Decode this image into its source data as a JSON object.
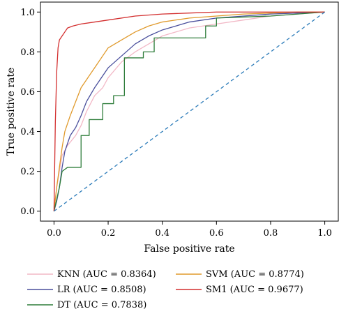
{
  "chart_data": {
    "type": "line",
    "xlabel": "False positive rate",
    "ylabel": "True positive rate",
    "xlim": [
      -0.05,
      1.05
    ],
    "ylim": [
      -0.05,
      1.05
    ],
    "xticks": [
      "0.0",
      "0.2",
      "0.4",
      "0.6",
      "0.8",
      "1.0"
    ],
    "yticks": [
      "0.0",
      "0.2",
      "0.4",
      "0.6",
      "0.8",
      "1.0"
    ],
    "grid": false,
    "legend_position": "bottom",
    "series": [
      {
        "name": "KNN (AUC = 0.8364)",
        "color": "#f2b8c6",
        "x": [
          0,
          0.01,
          0.02,
          0.03,
          0.05,
          0.08,
          0.1,
          0.12,
          0.15,
          0.18,
          0.2,
          0.25,
          0.3,
          0.35,
          0.4,
          0.5,
          0.6,
          0.7,
          0.8,
          0.9,
          1.0
        ],
        "y": [
          0,
          0.12,
          0.2,
          0.28,
          0.33,
          0.38,
          0.43,
          0.5,
          0.58,
          0.62,
          0.67,
          0.75,
          0.8,
          0.84,
          0.88,
          0.92,
          0.94,
          0.96,
          0.98,
          0.99,
          1.0
        ]
      },
      {
        "name": "LR (AUC = 0.8508)",
        "color": "#4a4f9c",
        "x": [
          0,
          0.01,
          0.02,
          0.03,
          0.04,
          0.06,
          0.08,
          0.1,
          0.12,
          0.15,
          0.18,
          0.2,
          0.25,
          0.3,
          0.35,
          0.4,
          0.5,
          0.6,
          0.7,
          0.8,
          0.9,
          1.0
        ],
        "y": [
          0,
          0.05,
          0.12,
          0.22,
          0.3,
          0.38,
          0.42,
          0.48,
          0.55,
          0.62,
          0.68,
          0.72,
          0.78,
          0.84,
          0.88,
          0.91,
          0.95,
          0.97,
          0.98,
          0.99,
          0.995,
          1.0
        ]
      },
      {
        "name": "SVM (AUC = 0.8774)",
        "color": "#e09a2c",
        "x": [
          0,
          0.01,
          0.02,
          0.03,
          0.04,
          0.06,
          0.08,
          0.1,
          0.12,
          0.15,
          0.18,
          0.2,
          0.25,
          0.3,
          0.35,
          0.4,
          0.5,
          0.6,
          0.7,
          0.8,
          0.9,
          1.0
        ],
        "y": [
          0,
          0.12,
          0.22,
          0.32,
          0.4,
          0.48,
          0.55,
          0.62,
          0.66,
          0.72,
          0.78,
          0.82,
          0.86,
          0.9,
          0.93,
          0.95,
          0.97,
          0.98,
          0.99,
          0.995,
          1.0,
          1.0
        ]
      },
      {
        "name": "DT (AUC = 0.7838)",
        "color": "#2e7d3a",
        "x": [
          0,
          0.02,
          0.03,
          0.05,
          0.1,
          0.1,
          0.13,
          0.13,
          0.18,
          0.18,
          0.22,
          0.22,
          0.26,
          0.26,
          0.33,
          0.33,
          0.37,
          0.37,
          0.56,
          0.56,
          0.6,
          0.6,
          0.8,
          1.0
        ],
        "y": [
          0,
          0.12,
          0.2,
          0.22,
          0.22,
          0.38,
          0.38,
          0.46,
          0.46,
          0.54,
          0.54,
          0.58,
          0.58,
          0.77,
          0.77,
          0.8,
          0.8,
          0.87,
          0.87,
          0.93,
          0.93,
          0.97,
          0.98,
          1.0
        ]
      },
      {
        "name": "SM1 (AUC = 0.9677)",
        "color": "#d32f2f",
        "x": [
          0,
          0.005,
          0.01,
          0.015,
          0.02,
          0.03,
          0.04,
          0.05,
          0.07,
          0.1,
          0.15,
          0.2,
          0.3,
          0.4,
          0.5,
          0.6,
          0.8,
          1.0
        ],
        "y": [
          0,
          0.45,
          0.7,
          0.82,
          0.86,
          0.88,
          0.9,
          0.92,
          0.93,
          0.94,
          0.95,
          0.96,
          0.98,
          0.99,
          0.995,
          1.0,
          1.0,
          1.0
        ]
      },
      {
        "name": "",
        "color": "#2b7bb9",
        "dashed": true,
        "x": [
          0,
          1
        ],
        "y": [
          0,
          1
        ]
      }
    ]
  }
}
